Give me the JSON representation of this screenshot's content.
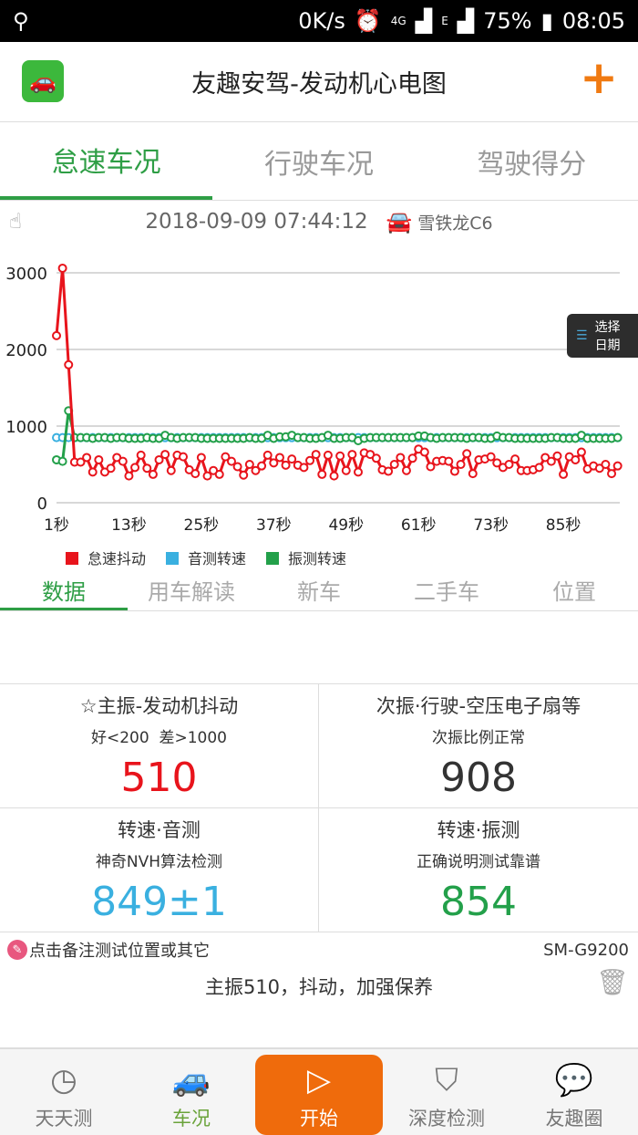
{
  "status": {
    "speed": "0K/s",
    "network": "4G",
    "network2": "E",
    "battery": "75%",
    "time": "08:05"
  },
  "header": {
    "title": "友趣安驾-发动机心电图",
    "add_icon": "plus-icon"
  },
  "tabs": [
    {
      "label": "怠速车况",
      "active": true
    },
    {
      "label": "行驶车况"
    },
    {
      "label": "驾驶得分"
    }
  ],
  "info": {
    "datetime": "2018-09-09 07:44:12",
    "car": "雪铁龙C6"
  },
  "date_button": {
    "line1": "选择",
    "line2": "日期"
  },
  "colors": {
    "red": "#e8141c",
    "blue": "#3ab0e0",
    "green": "#23a04a",
    "accent": "#2e9e45",
    "orange": "#ef6b0c"
  },
  "chart_data": {
    "type": "line",
    "ylim": [
      0,
      3000
    ],
    "yticks": [
      "0",
      "1000",
      "2000",
      "3000"
    ],
    "xticks": [
      "1秒",
      "13秒",
      "25秒",
      "37秒",
      "49秒",
      "61秒",
      "73秒",
      "85秒"
    ],
    "grid": true,
    "legend_position": "bottom-left",
    "series": [
      {
        "name": "怠速抖动",
        "color": "#e8141c",
        "values": [
          2180,
          3060,
          1800,
          530,
          530,
          590,
          400,
          560,
          400,
          450,
          590,
          540,
          350,
          460,
          620,
          450,
          370,
          560,
          630,
          420,
          620,
          600,
          430,
          380,
          590,
          350,
          420,
          370,
          600,
          540,
          470,
          360,
          500,
          420,
          480,
          620,
          520,
          590,
          490,
          570,
          490,
          460,
          550,
          630,
          370,
          620,
          350,
          610,
          420,
          630,
          400,
          650,
          630,
          580,
          430,
          410,
          500,
          590,
          420,
          580,
          700,
          660,
          470,
          540,
          550,
          540,
          410,
          500,
          640,
          380,
          560,
          570,
          600,
          520,
          460,
          500,
          570,
          420,
          420,
          430,
          460,
          590,
          540,
          610,
          370,
          600,
          560,
          660,
          440,
          480,
          450,
          500,
          380,
          480
        ]
      },
      {
        "name": "音测转速",
        "color": "#3ab0e0",
        "values": [
          850,
          850,
          850,
          849,
          849,
          849,
          849,
          849,
          849,
          849,
          849,
          849,
          849,
          849,
          849,
          849,
          849,
          849,
          849,
          849,
          849,
          849,
          849,
          849,
          849,
          849,
          849,
          849,
          849,
          849,
          849,
          849,
          849,
          849,
          849,
          849,
          849,
          849,
          849,
          849,
          849,
          849,
          849,
          849,
          849,
          849,
          849,
          849,
          849,
          849,
          849,
          849,
          849,
          849,
          849,
          849,
          849,
          849,
          849,
          849,
          849,
          849,
          849,
          849,
          849,
          849,
          849,
          849,
          849,
          849,
          849,
          849,
          849,
          849,
          849,
          849,
          849,
          849,
          849,
          849,
          849,
          849,
          849,
          849,
          849,
          849,
          849,
          849,
          849,
          849,
          849,
          849,
          849,
          849
        ]
      },
      {
        "name": "振测转速",
        "color": "#23a04a",
        "values": [
          560,
          540,
          1200,
          850,
          850,
          850,
          840,
          850,
          850,
          840,
          850,
          850,
          840,
          840,
          840,
          850,
          840,
          840,
          880,
          850,
          840,
          850,
          850,
          850,
          840,
          840,
          840,
          840,
          840,
          840,
          840,
          840,
          850,
          840,
          840,
          880,
          840,
          860,
          860,
          880,
          850,
          850,
          840,
          840,
          850,
          880,
          840,
          840,
          850,
          850,
          810,
          840,
          850,
          850,
          850,
          850,
          850,
          850,
          850,
          850,
          870,
          870,
          850,
          840,
          850,
          850,
          850,
          850,
          840,
          850,
          850,
          840,
          840,
          870,
          850,
          850,
          840,
          840,
          840,
          840,
          840,
          840,
          850,
          850,
          840,
          840,
          840,
          880,
          840,
          840,
          840,
          840,
          840,
          850
        ]
      }
    ]
  },
  "subtabs": [
    {
      "label": "数据",
      "active": true
    },
    {
      "label": "用车解读"
    },
    {
      "label": "新车"
    },
    {
      "label": "二手车"
    },
    {
      "label": "位置"
    }
  ],
  "cards": [
    {
      "title": "☆主振-发动机抖动",
      "subtitle": "好<200  差>1000",
      "value": "510",
      "color": "#e8141c"
    },
    {
      "title": "次振·行驶-空压电子扇等",
      "subtitle": "次振比例正常",
      "value": "908",
      "color": "#333333"
    },
    {
      "title": "转速·音测",
      "subtitle": "神奇NVH算法检测",
      "value": "849±1",
      "color": "#3ab0e0"
    },
    {
      "title": "转速·振测",
      "subtitle": "正确说明测试靠谱",
      "value": "854",
      "color": "#23a04a"
    }
  ],
  "note": {
    "prompt": "点击备注测试位置或其它",
    "model": "SM-G9200",
    "remark": "主振510，抖动，加强保养"
  },
  "nav": [
    {
      "label": "天天测"
    },
    {
      "label": "车况",
      "active": true
    },
    {
      "label": "开始"
    },
    {
      "label": "深度检测"
    },
    {
      "label": "友趣圈"
    }
  ]
}
